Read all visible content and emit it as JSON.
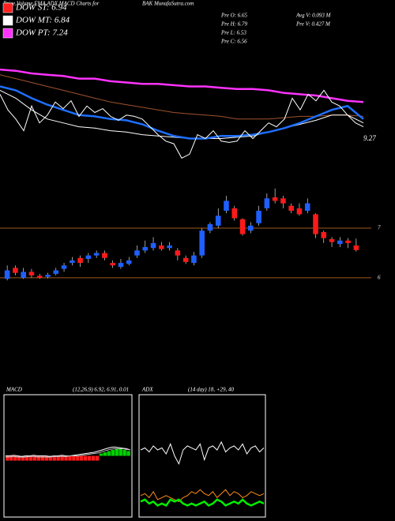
{
  "chart_data": [
    {
      "type": "line",
      "title": "Price,Volume,EMA,ADX,MACD Charts for",
      "subtitle": "BAK MunafaSutra.com",
      "legend": [
        {
          "label": "DOW ST: 6.94",
          "color": "#ff2020"
        },
        {
          "label": "DOW MT: 6.84",
          "color": "#ffffff"
        },
        {
          "label": "DOW PT: 7.24",
          "color": "#ff33ff"
        }
      ],
      "annotations": [
        "Pre O: 6.65",
        "Pre H: 6.79",
        "Pre L: 6.53",
        "Pre C: 6.56",
        "Avg V: 0.093 M",
        "Pre V: 0.427 M",
        "9.27"
      ],
      "ylim": [
        0,
        100
      ],
      "series": [
        {
          "color": "#a0522d",
          "thick": false,
          "values": [
            79,
            76,
            73,
            70,
            67,
            64,
            61,
            58,
            56,
            54,
            52,
            50,
            49,
            48,
            47,
            45,
            45,
            45,
            46,
            47,
            47,
            48,
            48,
            47
          ]
        },
        {
          "color": "#ff33ff",
          "thick": true,
          "values": [
            83,
            82,
            80,
            79,
            78,
            76,
            76,
            74,
            73,
            72,
            72,
            71,
            70,
            70,
            69,
            68,
            68,
            67,
            65,
            64,
            63,
            61,
            59,
            58
          ]
        },
        {
          "color": "#ffffff",
          "thick": false,
          "values": [
            67,
            61,
            52,
            45,
            42,
            39,
            38,
            36,
            35,
            33,
            32,
            31,
            30,
            30,
            30,
            31,
            32,
            35,
            38,
            41,
            44,
            48,
            48,
            42
          ]
        },
        {
          "color": "#1e6fff",
          "thick": true,
          "values": [
            70,
            67,
            61,
            56,
            52,
            48,
            47,
            45,
            44,
            41,
            36,
            32,
            30,
            30,
            32,
            32,
            33,
            35,
            38,
            42,
            47,
            52,
            55,
            45
          ]
        },
        {
          "color": "#ffffff",
          "thick": false,
          "values": [
            64,
            52,
            45,
            36,
            55,
            42,
            48,
            58,
            53,
            59,
            47,
            55,
            50,
            53,
            47,
            44,
            48,
            47,
            45,
            39,
            33,
            28,
            26,
            15,
            18,
            33,
            30,
            36,
            28,
            27,
            28,
            36,
            30,
            36,
            42,
            39,
            45,
            61,
            52,
            64,
            59,
            67,
            58,
            55,
            48,
            42,
            39
          ]
        }
      ]
    },
    {
      "type": "candlestick",
      "ylim": [
        5.84,
        7.97
      ],
      "yticks": [
        6,
        7
      ],
      "grid": true,
      "grid_color": "#a05a1e",
      "up_color": "#1f5fff",
      "down_color": "#ff1a1a",
      "open": [
        5.98,
        6.2,
        6.0,
        6.12,
        6.04,
        6.02,
        6.08,
        6.18,
        6.3,
        6.4,
        6.38,
        6.45,
        6.5,
        6.3,
        6.22,
        6.28,
        6.45,
        6.55,
        6.6,
        6.65,
        6.6,
        6.55,
        6.4,
        6.3,
        6.45,
        6.95,
        7.05,
        7.35,
        7.4,
        7.18,
        6.95,
        7.1,
        7.4,
        7.62,
        7.6,
        7.45,
        7.4,
        7.35,
        7.28,
        6.92,
        6.78,
        6.68,
        6.75,
        6.65
      ],
      "high": [
        6.25,
        6.25,
        6.2,
        6.18,
        6.08,
        6.1,
        6.2,
        6.3,
        6.42,
        6.45,
        6.5,
        6.55,
        6.55,
        6.35,
        6.38,
        6.42,
        6.65,
        6.75,
        6.82,
        6.72,
        6.72,
        6.6,
        6.45,
        6.52,
        7.0,
        7.12,
        7.4,
        7.65,
        7.45,
        7.2,
        7.12,
        7.45,
        7.7,
        7.8,
        7.65,
        7.5,
        7.5,
        7.6,
        7.3,
        6.95,
        6.82,
        6.82,
        6.8,
        6.79
      ],
      "low": [
        5.95,
        6.05,
        5.98,
        6.0,
        5.98,
        5.99,
        6.05,
        6.12,
        6.25,
        6.22,
        6.3,
        6.4,
        6.35,
        6.2,
        6.18,
        6.25,
        6.4,
        6.5,
        6.55,
        6.55,
        6.55,
        6.35,
        6.28,
        6.25,
        6.4,
        6.9,
        7.0,
        7.3,
        7.15,
        6.85,
        6.9,
        7.05,
        7.35,
        7.5,
        7.4,
        7.3,
        7.25,
        7.3,
        6.8,
        6.7,
        6.62,
        6.62,
        6.6,
        6.53
      ],
      "close": [
        6.15,
        6.1,
        6.12,
        6.05,
        6.0,
        6.06,
        6.15,
        6.25,
        6.35,
        6.3,
        6.45,
        6.5,
        6.4,
        6.25,
        6.3,
        6.35,
        6.55,
        6.62,
        6.7,
        6.58,
        6.65,
        6.45,
        6.32,
        6.45,
        6.95,
        7.08,
        7.25,
        7.55,
        7.2,
        6.88,
        7.05,
        7.35,
        7.6,
        7.55,
        7.5,
        7.35,
        7.28,
        7.5,
        6.88,
        6.8,
        6.72,
        6.75,
        6.7,
        6.56
      ]
    },
    {
      "type": "line",
      "title": "MACD",
      "subtitle": "(12,26,9) 6.92, 6.91, 0.01",
      "ylim": [
        -1,
        1
      ],
      "series": [
        {
          "type": "bar",
          "color": "#ff1a1a",
          "values": [
            -0.08,
            -0.08,
            -0.08,
            -0.08,
            -0.08,
            -0.08,
            -0.08,
            -0.08,
            -0.08,
            -0.08,
            -0.08,
            -0.08,
            -0.08,
            -0.08,
            -0.08,
            -0.08,
            -0.08,
            -0.08,
            -0.08,
            -0.08,
            -0.08,
            -0.08,
            -0.08,
            -0.08
          ]
        },
        {
          "type": "bar",
          "color": "#00d000",
          "offset": 24,
          "values": [
            0.04,
            0.06,
            0.08,
            0.1,
            0.12,
            0.12,
            0.1,
            0.08
          ]
        },
        {
          "color": "#ffffff",
          "values": [
            0.0,
            0.0,
            0.01,
            0.0,
            -0.01,
            0.0,
            0.0,
            0.01,
            0.0,
            0.0,
            0.0,
            -0.01,
            0.0,
            0.0,
            0.01,
            0.0,
            0.0,
            0.01,
            0.02,
            0.03,
            0.04,
            0.05,
            0.06,
            0.08,
            0.1,
            0.12,
            0.14,
            0.15,
            0.14,
            0.13,
            0.12,
            0.1
          ]
        },
        {
          "color": "#c0c0c0",
          "values": [
            -0.02,
            -0.02,
            -0.01,
            -0.02,
            -0.02,
            -0.02,
            -0.01,
            -0.01,
            -0.02,
            -0.02,
            -0.02,
            -0.02,
            -0.01,
            -0.01,
            -0.01,
            -0.01,
            0.0,
            0.0,
            0.0,
            0.01,
            0.02,
            0.03,
            0.04,
            0.05,
            0.07,
            0.09,
            0.11,
            0.12,
            0.12,
            0.12,
            0.11,
            0.1
          ]
        }
      ]
    },
    {
      "type": "line",
      "title": "ADX",
      "subtitle": "(14 day) 18, +29, 40",
      "ylim": [
        0,
        60
      ],
      "series": [
        {
          "color": "#ffffff",
          "values": [
            33,
            34,
            32,
            35,
            33,
            34,
            31,
            36,
            30,
            26,
            33,
            35,
            34,
            33,
            36,
            28,
            34,
            35,
            33,
            37,
            32,
            34,
            35,
            33,
            36,
            31,
            34,
            35,
            32,
            34
          ]
        },
        {
          "color": "#ff8c1a",
          "values": [
            10,
            11,
            9,
            12,
            8,
            9,
            10,
            9,
            8,
            7,
            9,
            10,
            12,
            11,
            13,
            11,
            10,
            12,
            9,
            11,
            13,
            10,
            12,
            11,
            9,
            10,
            12,
            11,
            10,
            11
          ]
        },
        {
          "color": "#00ee00",
          "thick": true,
          "values": [
            7,
            8,
            6,
            7,
            5,
            6,
            5,
            8,
            7,
            8,
            6,
            5,
            6,
            5,
            6,
            7,
            5,
            6,
            8,
            7,
            5,
            6,
            7,
            6,
            8,
            6,
            5,
            6,
            7,
            6
          ]
        }
      ]
    }
  ]
}
